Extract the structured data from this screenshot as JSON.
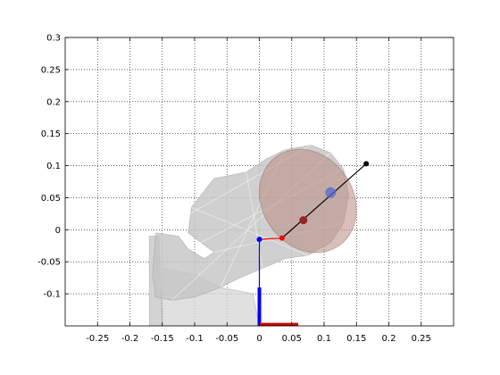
{
  "chart_data": {
    "type": "scatter",
    "title": "",
    "xlabel": "",
    "ylabel": "",
    "xlim": [
      -0.3,
      0.3
    ],
    "ylim": [
      -0.15,
      0.3
    ],
    "grid": true,
    "x_ticks": [
      -0.25,
      -0.2,
      -0.15,
      -0.1,
      -0.05,
      0,
      0.05,
      0.1,
      0.15,
      0.2,
      0.25
    ],
    "x_tick_labels": [
      "-0.25",
      "-0.2",
      "-0.15",
      "-0.1",
      "-0.05",
      "0",
      "0.05",
      "0.1",
      "0.15",
      "0.2",
      "0.25"
    ],
    "y_ticks": [
      -0.1,
      -0.05,
      0,
      0.05,
      0.1,
      0.15,
      0.2,
      0.25,
      0.3
    ],
    "y_tick_labels": [
      "-0.1",
      "-0.05",
      "0",
      "0.05",
      "0.1",
      "0.15",
      "0.2",
      "0.25",
      "0.3"
    ],
    "head_silhouette": [
      [
        -0.16,
        -0.005
      ],
      [
        -0.125,
        -0.01
      ],
      [
        -0.11,
        -0.03
      ],
      [
        -0.085,
        -0.045
      ],
      [
        -0.07,
        -0.035
      ],
      [
        -0.11,
        -0.005
      ],
      [
        -0.105,
        0.035
      ],
      [
        -0.07,
        0.08
      ],
      [
        -0.02,
        0.09
      ],
      [
        0.01,
        0.11
      ],
      [
        0.04,
        0.125
      ],
      [
        0.08,
        0.132
      ],
      [
        0.11,
        0.12
      ],
      [
        0.13,
        0.095
      ],
      [
        0.138,
        0.055
      ],
      [
        0.13,
        0.01
      ],
      [
        0.11,
        -0.02
      ],
      [
        0.075,
        -0.04
      ],
      [
        0.04,
        -0.045
      ],
      [
        0.005,
        -0.06
      ],
      [
        -0.03,
        -0.075
      ],
      [
        -0.06,
        -0.09
      ],
      [
        -0.1,
        -0.105
      ],
      [
        -0.135,
        -0.11
      ],
      [
        -0.16,
        -0.105
      ],
      [
        -0.165,
        -0.07
      ]
    ],
    "neck_silhouette": [
      [
        -0.17,
        -0.01
      ],
      [
        -0.155,
        -0.01
      ],
      [
        -0.15,
        -0.15
      ],
      [
        -0.17,
        -0.15
      ]
    ],
    "torso_silhouette": [
      [
        -0.15,
        -0.06
      ],
      [
        -0.1,
        -0.07
      ],
      [
        -0.06,
        -0.09
      ],
      [
        -0.01,
        -0.1
      ],
      [
        0.0,
        -0.15
      ],
      [
        -0.15,
        -0.15
      ]
    ],
    "brain_ellipse": {
      "cx": 0.075,
      "cy": 0.045,
      "rx": 0.07,
      "ry": 0.085,
      "rotate_deg": -35,
      "color": "#b88a80"
    },
    "kinematic_chain": [
      {
        "from": [
          0,
          -0.15
        ],
        "to": [
          0,
          -0.015
        ],
        "color": "#0000ff",
        "width": "thin"
      },
      {
        "from": [
          0,
          -0.09
        ],
        "to": [
          0,
          -0.15
        ],
        "color": "#0000ff",
        "width": "thick"
      },
      {
        "from": [
          0,
          -0.015
        ],
        "to": [
          0.035,
          -0.013
        ],
        "color": "#ff0000",
        "width": "thin"
      },
      {
        "from": [
          0.035,
          -0.013
        ],
        "to": [
          0.165,
          0.103
        ],
        "color": "#000000",
        "width": "thin"
      },
      {
        "from": [
          0.058,
          -0.148
        ],
        "to": [
          0.058,
          -0.148
        ],
        "color": "#ff0000",
        "width": "thin"
      },
      {
        "from": [
          0.0,
          -0.148
        ],
        "to": [
          0.06,
          -0.148
        ],
        "color": "#cc0000",
        "width": "thick"
      }
    ],
    "points": [
      {
        "name": "base",
        "x": 0.0,
        "y": -0.015,
        "color": "#0000ff",
        "size": "small"
      },
      {
        "name": "joint",
        "x": 0.035,
        "y": -0.013,
        "color": "#ff0000",
        "size": "small"
      },
      {
        "name": "center",
        "x": 0.068,
        "y": 0.015,
        "color": "#992222",
        "size": "medium"
      },
      {
        "name": "blue-marker",
        "x": 0.11,
        "y": 0.058,
        "color": "#5566cc",
        "size": "large"
      },
      {
        "name": "tip",
        "x": 0.165,
        "y": 0.103,
        "color": "#000000",
        "size": "small"
      }
    ]
  }
}
